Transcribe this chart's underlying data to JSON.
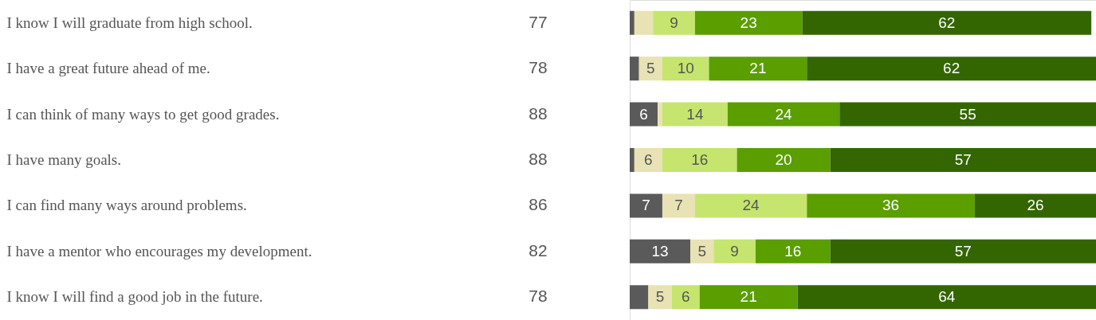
{
  "chart_data": {
    "type": "bar",
    "orientation": "horizontal",
    "stacked": true,
    "categories": [
      "I know I will graduate from high school.",
      "I have a great future ahead of me.",
      "I can think of many ways to get good grades.",
      "I have many goals.",
      "I can find many ways around problems.",
      "I have a mentor who encourages my development.",
      "I know I will find a good job in the future."
    ],
    "series": [
      {
        "color": "#5a5a5a",
        "values": [
          1,
          2,
          6,
          1,
          7,
          13,
          4
        ],
        "value_labels": [
          null,
          null,
          "6",
          null,
          "7",
          "13",
          null
        ]
      },
      {
        "color": "#e8e2b4",
        "values": [
          4,
          5,
          1,
          6,
          7,
          5,
          5
        ],
        "value_labels": [
          null,
          "5",
          null,
          "6",
          "7",
          "5",
          "5"
        ]
      },
      {
        "color": "#c5e56e",
        "values": [
          9,
          10,
          14,
          16,
          24,
          9,
          6
        ],
        "value_labels": [
          "9",
          "10",
          "14",
          "16",
          "24",
          "9",
          "6"
        ]
      },
      {
        "color": "#5a9e00",
        "values": [
          23,
          21,
          24,
          20,
          36,
          16,
          21
        ],
        "value_labels": [
          "23",
          "21",
          "24",
          "20",
          "36",
          "16",
          "21"
        ]
      },
      {
        "color": "#336600",
        "values": [
          62,
          62,
          55,
          57,
          26,
          57,
          64
        ],
        "value_labels": [
          "62",
          "62",
          "55",
          "57",
          "26",
          "57",
          "64"
        ]
      }
    ],
    "annotations": [
      "77",
      "78",
      "88",
      "88",
      "86",
      "82",
      "78"
    ]
  }
}
